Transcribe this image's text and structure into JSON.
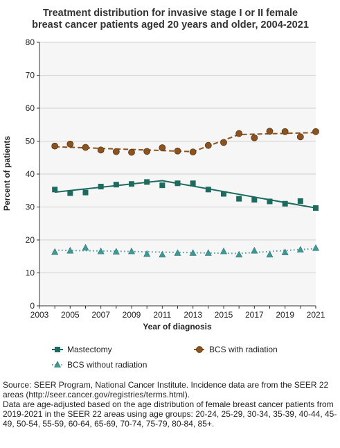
{
  "chart_data": {
    "type": "scatter",
    "title": [
      "Treatment distribution for invasive stage I or II female",
      "breast cancer patients aged 20 years and older, 2004-2021"
    ],
    "xlabel": "Year of diagnosis",
    "ylabel": "Percent of patients",
    "xlim": [
      2003,
      2021
    ],
    "ylim": [
      0,
      80
    ],
    "xticks": [
      "2003",
      "2005",
      "2007",
      "2009",
      "2011",
      "2013",
      "2015",
      "2017",
      "2019",
      "2021"
    ],
    "yticks": [
      "0",
      "10",
      "20",
      "30",
      "40",
      "50",
      "60",
      "70",
      "80"
    ],
    "grid": "horizontal",
    "legend_position": "bottom",
    "x": [
      2004,
      2005,
      2006,
      2007,
      2008,
      2009,
      2010,
      2011,
      2012,
      2013,
      2014,
      2015,
      2016,
      2017,
      2018,
      2019,
      2020,
      2021
    ],
    "series": [
      {
        "name": "Mastectomy",
        "marker": "square",
        "color": "#1d6b5f",
        "values": [
          35.3,
          34.2,
          34.4,
          36.2,
          36.8,
          37.0,
          37.6,
          36.6,
          37.2,
          37.2,
          35.3,
          34.0,
          32.5,
          32.2,
          31.7,
          31.0,
          31.8,
          29.7
        ],
        "trend": [
          [
            2004,
            34.5
          ],
          [
            2011,
            38.0
          ],
          [
            2021,
            29.7
          ]
        ]
      },
      {
        "name": "BCS with radiation",
        "marker": "circle",
        "color": "#8a531f",
        "values": [
          48.5,
          49.1,
          48.1,
          47.3,
          46.8,
          46.6,
          46.9,
          48.0,
          47.0,
          46.7,
          48.7,
          49.6,
          52.3,
          51.0,
          53.0,
          52.9,
          51.3,
          52.9
        ],
        "trend": [
          [
            2004,
            48.3
          ],
          [
            2013,
            46.8
          ],
          [
            2016,
            52.0
          ],
          [
            2021,
            52.6
          ]
        ]
      },
      {
        "name": "BCS without radiation",
        "marker": "triangle",
        "color": "#3d9a96",
        "values": [
          16.3,
          16.7,
          17.6,
          16.5,
          16.4,
          16.5,
          15.7,
          15.5,
          16.0,
          16.0,
          16.0,
          16.5,
          15.5,
          16.7,
          15.5,
          16.2,
          17.0,
          17.5
        ],
        "trend": [
          [
            2004,
            16.9
          ],
          [
            2016,
            15.9
          ],
          [
            2021,
            17.4
          ]
        ]
      }
    ]
  },
  "source_note": [
    "Source: SEER Program, National Cancer Institute. Incidence data are from the SEER 22 areas (http://seer.cancer.gov/registries/terms.html).",
    "Data are age-adjusted based on the age distribution of female breast cancer patients from 2019-2021 in the SEER 22 areas using age groups: 20-24, 25-29, 30-34, 35-39, 40-44, 45-49, 50-54, 55-59, 60-64, 65-69, 70-74, 75-79, 80-84, 85+."
  ]
}
